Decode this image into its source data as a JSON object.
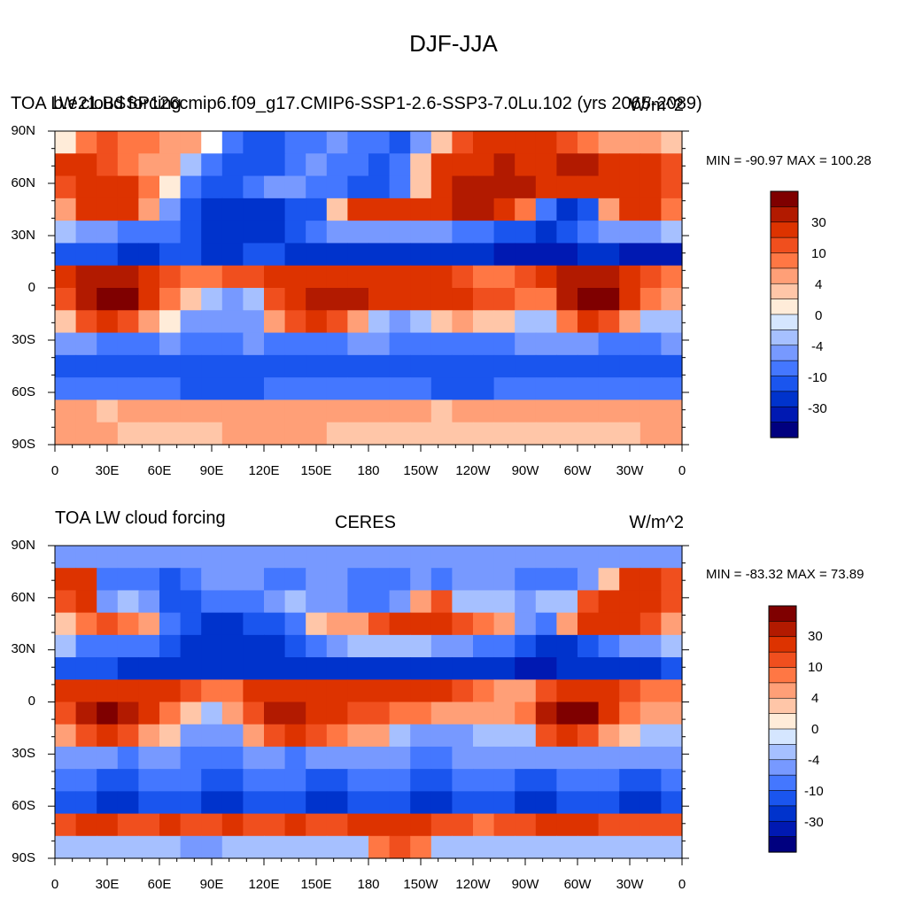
{
  "title": "DJF-JJA",
  "colorbar": {
    "colors": [
      "#00007f",
      "#0019b2",
      "#0033cc",
      "#1a55ee",
      "#4477ff",
      "#7799ff",
      "#a6c0ff",
      "#d5e6ff",
      "#ffecd9",
      "#ffc6a8",
      "#ff9f77",
      "#ff7744",
      "#f04f1e",
      "#dd3300",
      "#b21a00",
      "#7f0000"
    ],
    "labels": [
      "30",
      "10",
      "4",
      "0",
      "-4",
      "-10",
      "-30"
    ]
  },
  "panels": [
    {
      "left_title": "TOA LW cloud forcing",
      "center_title": "b.e21.BSSP126cmip6.f09_g17.CMIP6-SSP1-2.6-SSP3-7.0Lu.102 (yrs 2065-2089)",
      "right_title": "W/m^2",
      "minmax": "MIN = -90.97 MAX = 100.28"
    },
    {
      "left_title": "TOA LW cloud forcing",
      "center_title": "CERES",
      "right_title": "W/m^2",
      "minmax": "MIN = -83.32 MAX =  73.89"
    }
  ],
  "axes": {
    "lat_ticks": [
      "90N",
      "60N",
      "30N",
      "0",
      "30S",
      "60S",
      "90S"
    ],
    "lon_ticks": [
      "0",
      "30E",
      "60E",
      "90E",
      "120E",
      "150E",
      "180",
      "150W",
      "120W",
      "90W",
      "60W",
      "30W",
      "0"
    ]
  },
  "chart_data": [
    {
      "type": "heatmap",
      "title": "b.e21.BSSP126cmip6.f09_g17.CMIP6-SSP1-2.6-SSP3-7.0Lu.102 (yrs 2065-2089)",
      "variable": "TOA LW cloud forcing",
      "units": "W/m^2",
      "min": -90.97,
      "max": 100.28,
      "x_range": [
        0,
        360
      ],
      "y_range": [
        -90,
        90
      ],
      "contour_levels": [
        -30,
        -10,
        -4,
        0,
        4,
        10,
        30
      ],
      "field": [
        [
          1,
          4,
          5,
          4,
          4,
          3,
          3,
          0,
          -4,
          -5,
          -5,
          -4,
          -4,
          -3,
          -4,
          -4,
          -5,
          -3,
          2,
          5,
          6,
          6,
          6,
          6,
          5,
          4,
          3,
          3,
          3,
          2
        ],
        [
          6,
          6,
          5,
          4,
          3,
          3,
          -2,
          -4,
          -5,
          -5,
          -5,
          -4,
          -3,
          -4,
          -4,
          -5,
          -4,
          2,
          6,
          6,
          6,
          7,
          6,
          6,
          7,
          7,
          6,
          6,
          6,
          5
        ],
        [
          5,
          6,
          6,
          6,
          4,
          1,
          -4,
          -5,
          -5,
          -4,
          -3,
          -3,
          -4,
          -4,
          -5,
          -5,
          -4,
          2,
          6,
          7,
          7,
          7,
          7,
          6,
          6,
          6,
          6,
          6,
          6,
          5
        ],
        [
          3,
          6,
          6,
          6,
          3,
          -3,
          -5,
          -6,
          -6,
          -6,
          -6,
          -5,
          -5,
          2,
          6,
          6,
          6,
          6,
          6,
          7,
          7,
          6,
          4,
          -4,
          -6,
          -5,
          3,
          6,
          6,
          4
        ],
        [
          -2,
          -3,
          -3,
          -4,
          -4,
          -4,
          -5,
          -6,
          -6,
          -6,
          -6,
          -5,
          -4,
          -3,
          -3,
          -3,
          -3,
          -3,
          -3,
          -4,
          -4,
          -5,
          -5,
          -6,
          -5,
          -4,
          -3,
          -3,
          -3,
          -2
        ],
        [
          -5,
          -5,
          -5,
          -6,
          -6,
          -5,
          -5,
          -6,
          -6,
          -5,
          -5,
          -6,
          -6,
          -6,
          -6,
          -6,
          -6,
          -6,
          -6,
          -6,
          -6,
          -7,
          -7,
          -7,
          -7,
          -6,
          -6,
          -7,
          -7,
          -7
        ],
        [
          6,
          7,
          7,
          7,
          6,
          5,
          4,
          4,
          5,
          5,
          6,
          6,
          6,
          6,
          6,
          6,
          6,
          6,
          6,
          5,
          4,
          4,
          5,
          6,
          7,
          7,
          7,
          6,
          5,
          4
        ],
        [
          5,
          7,
          8,
          8,
          6,
          4,
          2,
          -2,
          -3,
          -2,
          5,
          6,
          7,
          7,
          7,
          6,
          6,
          6,
          6,
          6,
          5,
          5,
          4,
          4,
          7,
          8,
          8,
          6,
          4,
          3
        ],
        [
          2,
          5,
          6,
          5,
          3,
          1,
          -3,
          -3,
          -3,
          -3,
          3,
          5,
          6,
          5,
          3,
          -2,
          -3,
          -2,
          2,
          3,
          2,
          2,
          -2,
          -2,
          4,
          6,
          5,
          3,
          -2,
          -2
        ],
        [
          -3,
          -3,
          -4,
          -4,
          -4,
          -3,
          -4,
          -4,
          -4,
          -3,
          -4,
          -4,
          -4,
          -4,
          -3,
          -3,
          -4,
          -4,
          -4,
          -4,
          -4,
          -4,
          -3,
          -3,
          -3,
          -3,
          -4,
          -4,
          -4,
          -3
        ],
        [
          -5,
          -5,
          -5,
          -5,
          -5,
          -5,
          -5,
          -5,
          -5,
          -5,
          -5,
          -5,
          -5,
          -5,
          -5,
          -5,
          -5,
          -5,
          -5,
          -5,
          -5,
          -5,
          -5,
          -5,
          -5,
          -5,
          -5,
          -5,
          -5,
          -5
        ],
        [
          -4,
          -4,
          -4,
          -4,
          -4,
          -4,
          -5,
          -5,
          -5,
          -5,
          -4,
          -4,
          -4,
          -4,
          -4,
          -4,
          -4,
          -4,
          -5,
          -5,
          -5,
          -4,
          -4,
          -4,
          -4,
          -4,
          -4,
          -4,
          -4,
          -4
        ],
        [
          3,
          3,
          2,
          3,
          3,
          3,
          3,
          3,
          3,
          3,
          3,
          3,
          3,
          3,
          3,
          3,
          3,
          3,
          2,
          3,
          3,
          3,
          3,
          3,
          3,
          3,
          3,
          3,
          3,
          3
        ],
        [
          3,
          3,
          3,
          2,
          2,
          2,
          2,
          2,
          3,
          3,
          3,
          3,
          3,
          2,
          2,
          2,
          2,
          2,
          2,
          2,
          2,
          2,
          2,
          2,
          2,
          2,
          2,
          2,
          3,
          3
        ]
      ]
    },
    {
      "type": "heatmap",
      "title": "CERES",
      "variable": "TOA LW cloud forcing",
      "units": "W/m^2",
      "min": -83.32,
      "max": 73.89,
      "x_range": [
        0,
        360
      ],
      "y_range": [
        -90,
        90
      ],
      "contour_levels": [
        -30,
        -10,
        -4,
        0,
        4,
        10,
        30
      ],
      "field": [
        [
          -3,
          -3,
          -3,
          -3,
          -3,
          -3,
          -3,
          -3,
          -3,
          -3,
          -3,
          -3,
          -3,
          -3,
          -3,
          -3,
          -3,
          -3,
          -3,
          -3,
          -3,
          -3,
          -3,
          -3,
          -3,
          -3,
          -3,
          -3,
          -3,
          -3
        ],
        [
          6,
          6,
          -4,
          -4,
          -4,
          -5,
          -4,
          -3,
          -3,
          -3,
          -4,
          -4,
          -3,
          -3,
          -4,
          -4,
          -4,
          -3,
          -4,
          -3,
          -3,
          -3,
          -4,
          -4,
          -4,
          -3,
          2,
          6,
          6,
          5
        ],
        [
          5,
          6,
          -3,
          -2,
          -3,
          -5,
          -5,
          -4,
          -4,
          -4,
          -3,
          -2,
          -3,
          -3,
          -4,
          -4,
          -3,
          3,
          5,
          -2,
          -2,
          -2,
          -3,
          -2,
          -2,
          5,
          6,
          6,
          6,
          5
        ],
        [
          2,
          4,
          5,
          4,
          3,
          -4,
          -5,
          -6,
          -6,
          -5,
          -5,
          -4,
          2,
          3,
          3,
          5,
          6,
          6,
          6,
          5,
          4,
          3,
          -3,
          -4,
          3,
          6,
          6,
          6,
          5,
          3
        ],
        [
          -2,
          -4,
          -4,
          -4,
          -4,
          -5,
          -6,
          -6,
          -6,
          -6,
          -6,
          -5,
          -4,
          -3,
          -2,
          -2,
          -2,
          -2,
          -3,
          -3,
          -4,
          -4,
          -5,
          -6,
          -6,
          -5,
          -4,
          -3,
          -3,
          -2
        ],
        [
          -5,
          -5,
          -5,
          -6,
          -6,
          -6,
          -6,
          -6,
          -6,
          -6,
          -6,
          -6,
          -6,
          -6,
          -6,
          -6,
          -6,
          -6,
          -6,
          -6,
          -6,
          -6,
          -7,
          -7,
          -6,
          -6,
          -6,
          -6,
          -6,
          -5
        ],
        [
          6,
          6,
          6,
          6,
          6,
          6,
          5,
          4,
          4,
          6,
          6,
          6,
          6,
          6,
          6,
          6,
          6,
          6,
          6,
          5,
          4,
          3,
          3,
          5,
          6,
          6,
          6,
          5,
          4,
          4
        ],
        [
          5,
          7,
          8,
          7,
          6,
          4,
          2,
          -2,
          3,
          5,
          7,
          7,
          6,
          6,
          5,
          5,
          4,
          4,
          3,
          3,
          3,
          3,
          4,
          7,
          8,
          8,
          6,
          4,
          3,
          3
        ],
        [
          3,
          5,
          6,
          5,
          3,
          2,
          -3,
          -3,
          -3,
          3,
          5,
          6,
          5,
          4,
          3,
          3,
          -2,
          -3,
          -3,
          -3,
          -2,
          -2,
          -2,
          5,
          6,
          5,
          3,
          2,
          -2,
          -2
        ],
        [
          -3,
          -3,
          -3,
          -4,
          -3,
          -3,
          -4,
          -4,
          -4,
          -3,
          -3,
          -4,
          -3,
          -3,
          -3,
          -3,
          -3,
          -4,
          -4,
          -3,
          -3,
          -3,
          -3,
          -3,
          -3,
          -3,
          -3,
          -3,
          -3,
          -3
        ],
        [
          -4,
          -4,
          -5,
          -5,
          -4,
          -4,
          -4,
          -5,
          -5,
          -4,
          -4,
          -4,
          -5,
          -5,
          -4,
          -4,
          -4,
          -5,
          -5,
          -4,
          -4,
          -4,
          -5,
          -5,
          -4,
          -4,
          -4,
          -5,
          -5,
          -4
        ],
        [
          -5,
          -5,
          -6,
          -6,
          -5,
          -5,
          -5,
          -6,
          -6,
          -5,
          -5,
          -5,
          -6,
          -6,
          -5,
          -5,
          -5,
          -6,
          -6,
          -5,
          -5,
          -5,
          -6,
          -6,
          -5,
          -5,
          -5,
          -6,
          -6,
          -5
        ],
        [
          5,
          6,
          6,
          5,
          5,
          6,
          5,
          5,
          6,
          5,
          5,
          6,
          5,
          5,
          6,
          6,
          6,
          6,
          5,
          5,
          4,
          5,
          5,
          6,
          6,
          6,
          5,
          5,
          5,
          5
        ],
        [
          -2,
          -2,
          -2,
          -2,
          -2,
          -2,
          -3,
          -3,
          -2,
          -2,
          -2,
          -2,
          -2,
          -2,
          -2,
          4,
          5,
          4,
          -2,
          -2,
          -2,
          -2,
          -2,
          -2,
          -2,
          -2,
          -2,
          -2,
          -2,
          -2
        ]
      ]
    }
  ]
}
